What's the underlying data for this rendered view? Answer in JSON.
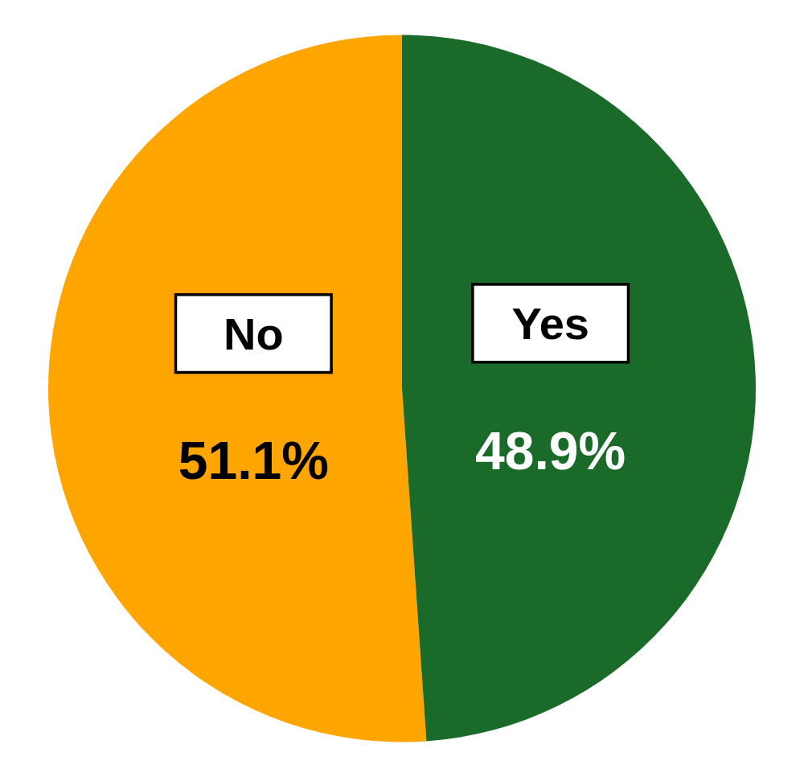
{
  "chart_data": {
    "type": "pie",
    "categories": [
      "No",
      "Yes"
    ],
    "values": [
      51.1,
      48.9
    ],
    "value_labels": [
      "51.1%",
      "48.9%"
    ],
    "colors": [
      "#FFA500",
      "#1A6B2A"
    ],
    "data_labels": true
  }
}
